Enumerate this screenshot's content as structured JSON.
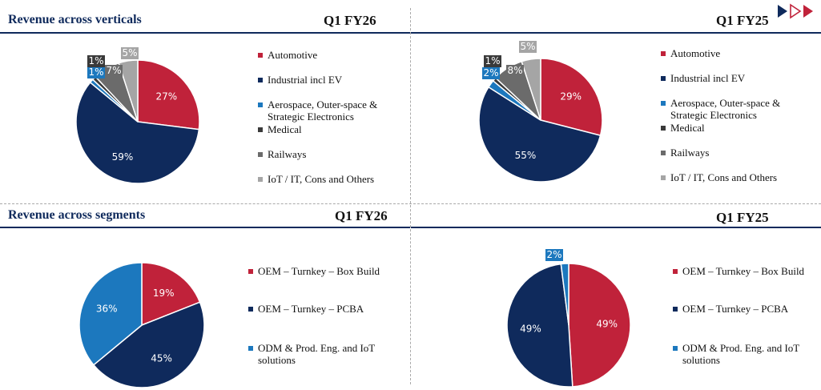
{
  "colors": {
    "accent_red": "#c0223a",
    "navy": "#0f2a5c",
    "light_blue": "#1c78be",
    "dark_gray": "#3a3a3a",
    "mid_gray": "#6b6b6b",
    "light_gray": "#a5a5a5"
  },
  "logo": {
    "icon": "triangles-logo-icon"
  },
  "sections": {
    "verticals": {
      "title": "Revenue across verticals"
    },
    "segments": {
      "title": "Revenue across segments"
    }
  },
  "legends": {
    "verticals": [
      "Automotive",
      "Industrial incl EV",
      "Aerospace, Outer-space & Strategic Electronics",
      "Medical",
      "Railways",
      "IoT / IT, Cons and Others"
    ],
    "segments": [
      "OEM – Turnkey – Box Build",
      "OEM – Turnkey – PCBA",
      "ODM & Prod. Eng. and IoT solutions"
    ]
  },
  "chart_data": [
    {
      "id": "verticals_q1fy26",
      "type": "pie",
      "title": "Q1 FY26",
      "categories": [
        "Automotive",
        "Industrial incl EV",
        "Aerospace, Outer-space & Strategic Electronics",
        "Medical",
        "Railways",
        "IoT / IT, Cons and Others"
      ],
      "values": [
        27,
        59,
        1,
        1,
        7,
        5
      ],
      "labels": [
        "27%",
        "59%",
        "1%",
        "1%",
        "7%",
        "5%"
      ],
      "colors": [
        "#c0223a",
        "#0f2a5c",
        "#1c78be",
        "#3a3a3a",
        "#6b6b6b",
        "#a5a5a5"
      ]
    },
    {
      "id": "verticals_q1fy25",
      "type": "pie",
      "title": "Q1 FY25",
      "categories": [
        "Automotive",
        "Industrial incl EV",
        "Aerospace, Outer-space & Strategic Electronics",
        "Medical",
        "Railways",
        "IoT / IT, Cons and Others"
      ],
      "values": [
        29,
        55,
        2,
        1,
        8,
        5
      ],
      "labels": [
        "29%",
        "55%",
        "2%",
        "1%",
        "8%",
        "5%"
      ],
      "colors": [
        "#c0223a",
        "#0f2a5c",
        "#1c78be",
        "#3a3a3a",
        "#6b6b6b",
        "#a5a5a5"
      ]
    },
    {
      "id": "segments_q1fy26",
      "type": "pie",
      "title": "Q1 FY26",
      "categories": [
        "OEM – Turnkey – Box Build",
        "OEM – Turnkey – PCBA",
        "ODM & Prod. Eng. and IoT solutions"
      ],
      "values": [
        19,
        45,
        36
      ],
      "labels": [
        "19%",
        "45%",
        "36%"
      ],
      "colors": [
        "#c0223a",
        "#0f2a5c",
        "#1c78be"
      ]
    },
    {
      "id": "segments_q1fy25",
      "type": "pie",
      "title": "Q1 FY25",
      "categories": [
        "OEM – Turnkey – Box Build",
        "OEM – Turnkey – PCBA",
        "ODM & Prod. Eng. and IoT solutions"
      ],
      "values": [
        49,
        49,
        2
      ],
      "labels": [
        "49%",
        "49%",
        "2%"
      ],
      "colors": [
        "#c0223a",
        "#0f2a5c",
        "#1c78be"
      ]
    }
  ]
}
